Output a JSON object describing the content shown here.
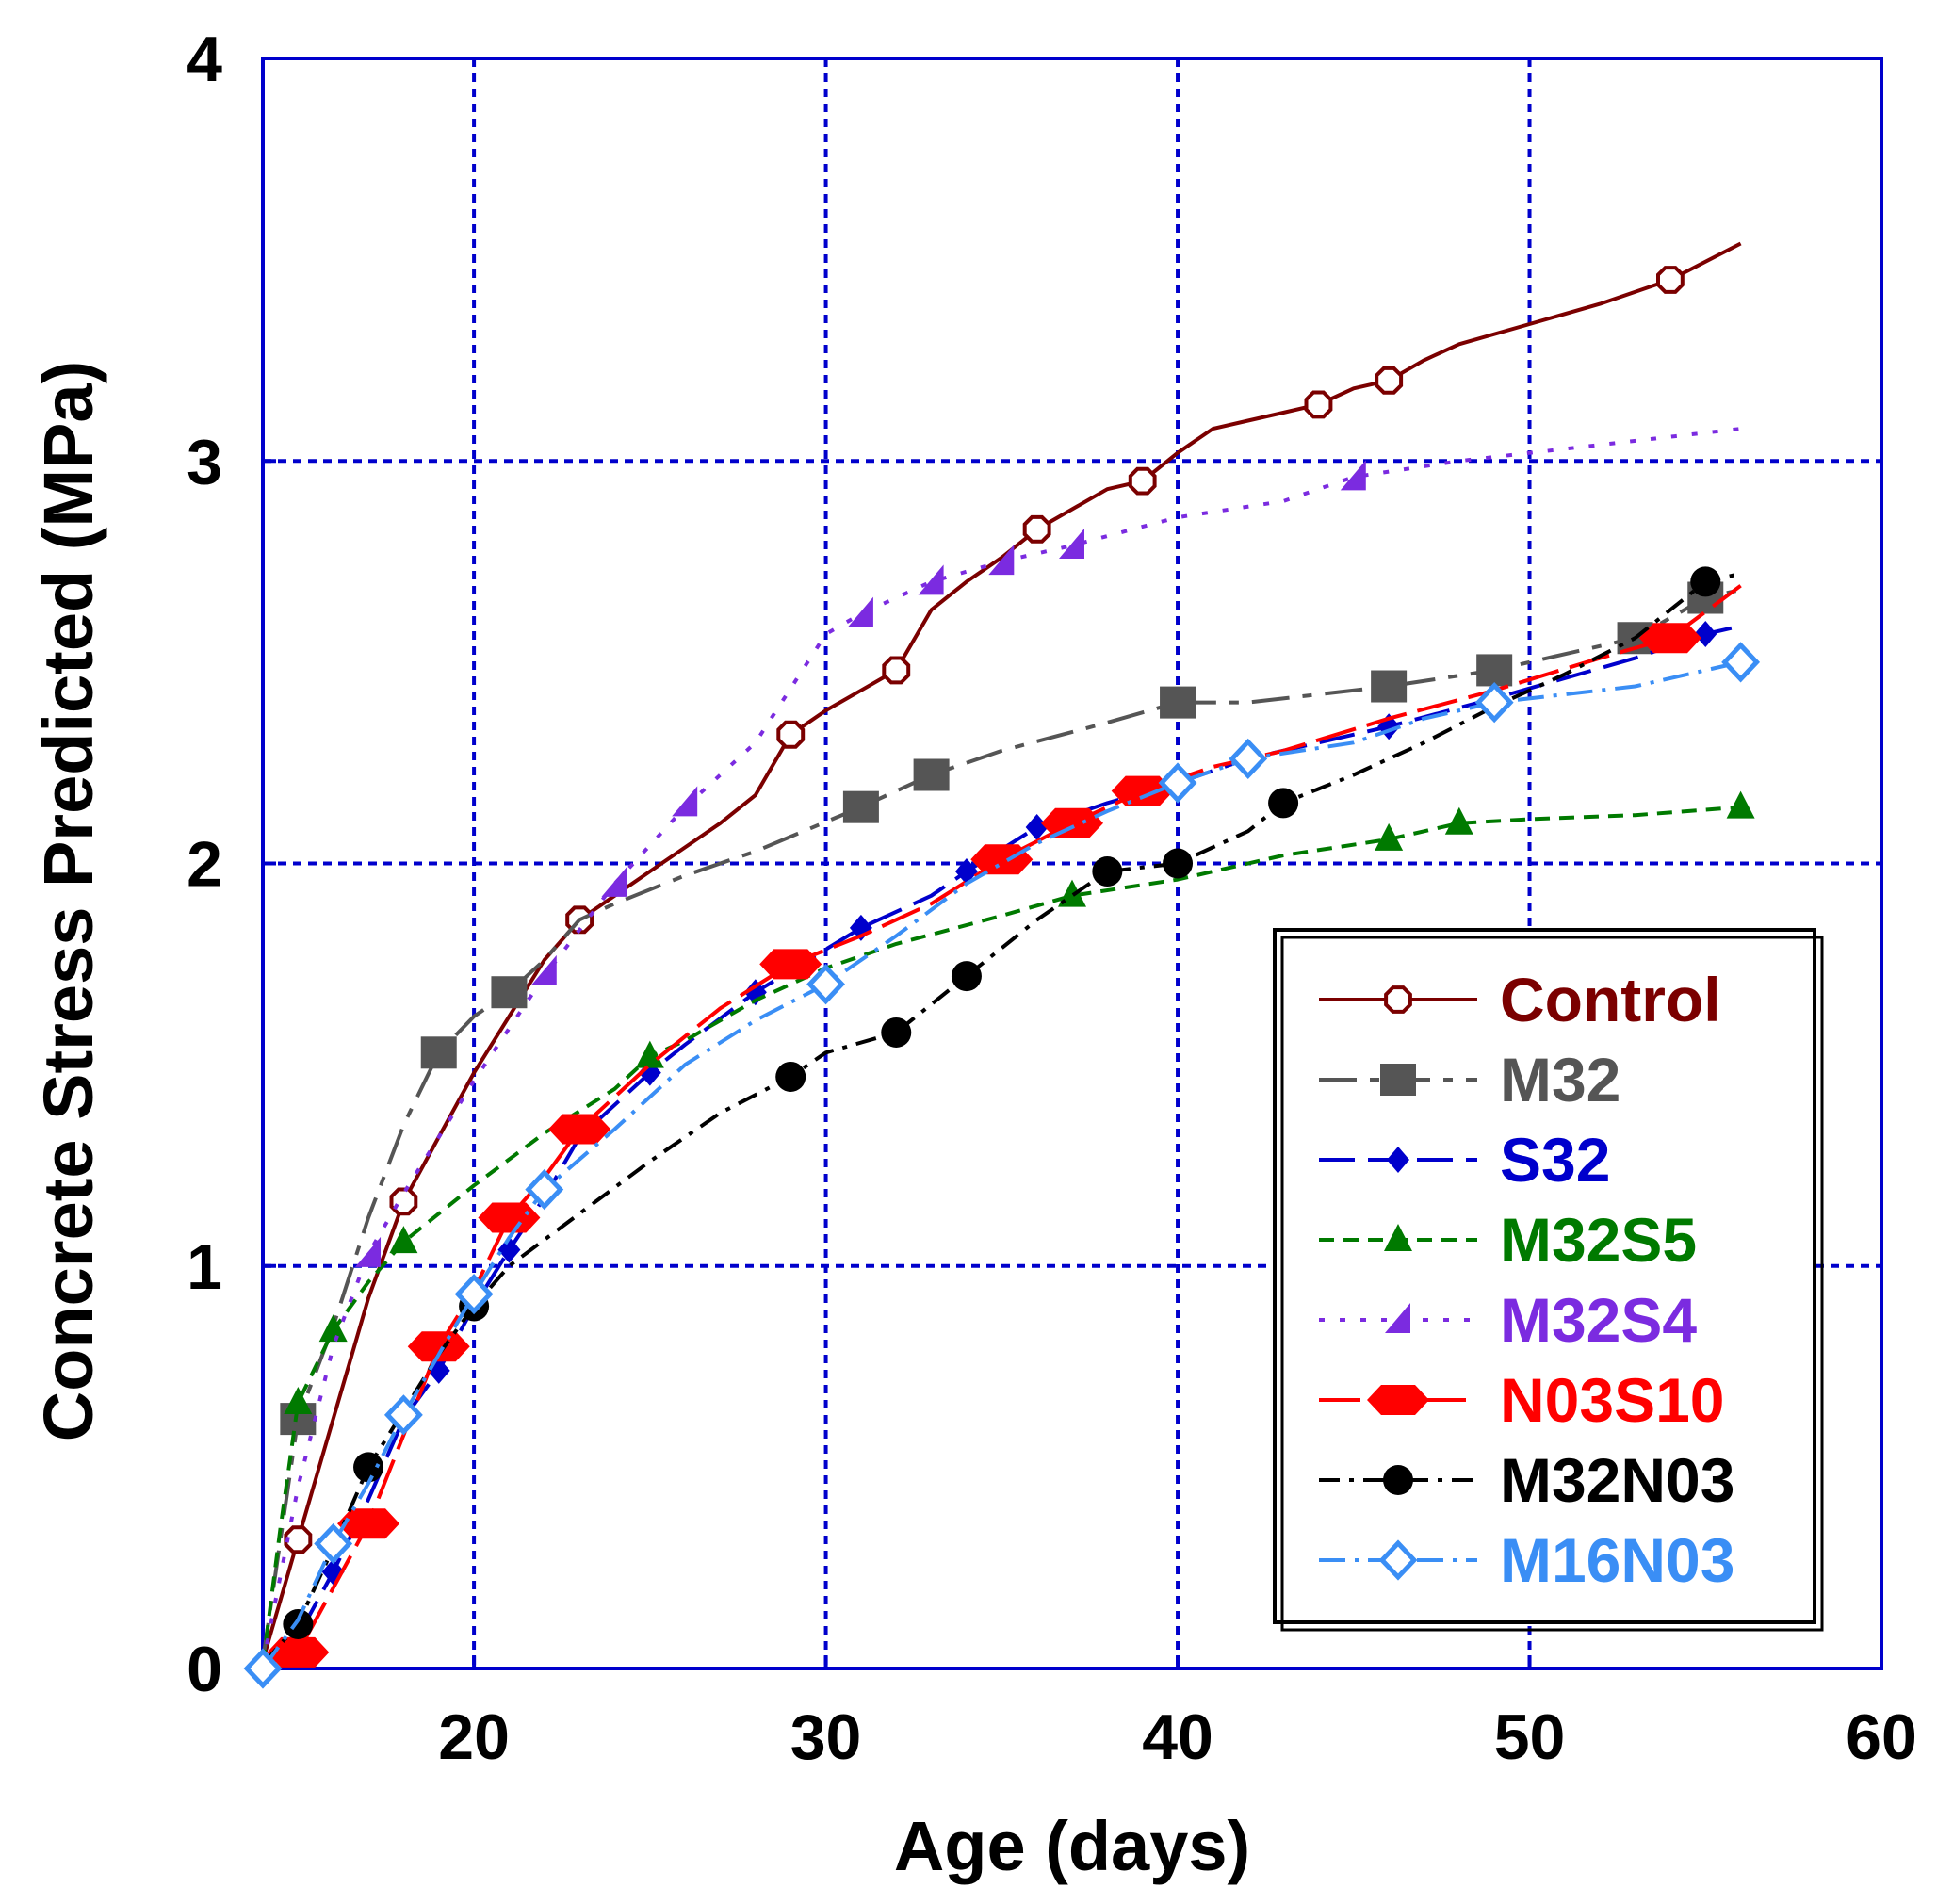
{
  "chart_data": {
    "type": "line",
    "title": "",
    "xlabel": "Age (days)",
    "ylabel": "Concrete Stress Predicted (MPa)",
    "xlim": [
      14,
      60
    ],
    "ylim": [
      0,
      4
    ],
    "xticks": [
      20,
      30,
      40,
      50,
      60
    ],
    "yticks": [
      0,
      1,
      2,
      3,
      4
    ],
    "xtick_labels": [
      "20",
      "30",
      "40",
      "50",
      "60"
    ],
    "ytick_labels": [
      "0",
      "1",
      "2",
      "3",
      "4"
    ],
    "grid": true,
    "legend_position": "bottom-right",
    "series": [
      {
        "name": "Control",
        "color": "#7b0000",
        "dash": "",
        "marker": "open-octagon",
        "line": [
          [
            14,
            0.02
          ],
          [
            15,
            0.32
          ],
          [
            16,
            0.62
          ],
          [
            17,
            0.92
          ],
          [
            18,
            1.16
          ],
          [
            19,
            1.32
          ],
          [
            20,
            1.48
          ],
          [
            21,
            1.62
          ],
          [
            22,
            1.76
          ],
          [
            23,
            1.86
          ],
          [
            24,
            1.92
          ],
          [
            25,
            1.98
          ],
          [
            26,
            2.04
          ],
          [
            27,
            2.1
          ],
          [
            28,
            2.17
          ],
          [
            29,
            2.32
          ],
          [
            30,
            2.38
          ],
          [
            31,
            2.43
          ],
          [
            32,
            2.48
          ],
          [
            33,
            2.63
          ],
          [
            34,
            2.7
          ],
          [
            35,
            2.76
          ],
          [
            36,
            2.83
          ],
          [
            37,
            2.88
          ],
          [
            38,
            2.93
          ],
          [
            39,
            2.95
          ],
          [
            40,
            3.02
          ],
          [
            41,
            3.08
          ],
          [
            42,
            3.1
          ],
          [
            43,
            3.12
          ],
          [
            44,
            3.14
          ],
          [
            45,
            3.18
          ],
          [
            46,
            3.2
          ],
          [
            47,
            3.25
          ],
          [
            48,
            3.29
          ],
          [
            50,
            3.34
          ],
          [
            52,
            3.39
          ],
          [
            54,
            3.45
          ],
          [
            56,
            3.54
          ]
        ],
        "markers": [
          [
            15,
            0.32
          ],
          [
            18,
            1.16
          ],
          [
            23,
            1.86
          ],
          [
            29,
            2.32
          ],
          [
            32,
            2.48
          ],
          [
            36,
            2.83
          ],
          [
            39,
            2.95
          ],
          [
            44,
            3.14
          ],
          [
            46,
            3.2
          ],
          [
            54,
            3.45
          ]
        ]
      },
      {
        "name": "M32",
        "color": "#555555",
        "dash": "40,14,10,14",
        "marker": "square",
        "line": [
          [
            14,
            0.02
          ],
          [
            15,
            0.62
          ],
          [
            16,
            0.85
          ],
          [
            17,
            1.12
          ],
          [
            18,
            1.35
          ],
          [
            19,
            1.53
          ],
          [
            20,
            1.62
          ],
          [
            21,
            1.68
          ],
          [
            22,
            1.76
          ],
          [
            23,
            1.86
          ],
          [
            24,
            1.9
          ],
          [
            26,
            1.97
          ],
          [
            28,
            2.03
          ],
          [
            31,
            2.14
          ],
          [
            33,
            2.22
          ],
          [
            35,
            2.28
          ],
          [
            38,
            2.35
          ],
          [
            40,
            2.4
          ],
          [
            42,
            2.4
          ],
          [
            46,
            2.44
          ],
          [
            49,
            2.48
          ],
          [
            51,
            2.52
          ],
          [
            53,
            2.56
          ],
          [
            55,
            2.66
          ],
          [
            56,
            2.68
          ]
        ],
        "markers": [
          [
            15,
            0.62
          ],
          [
            19,
            1.53
          ],
          [
            21,
            1.68
          ],
          [
            31,
            2.14
          ],
          [
            33,
            2.22
          ],
          [
            40,
            2.4
          ],
          [
            46,
            2.44
          ],
          [
            49,
            2.48
          ],
          [
            53,
            2.56
          ],
          [
            55,
            2.66
          ]
        ]
      },
      {
        "name": "S32",
        "color": "#0000cc",
        "dash": "38,14",
        "marker": "diamond",
        "line": [
          [
            14,
            0.01
          ],
          [
            15,
            0.08
          ],
          [
            16,
            0.24
          ],
          [
            17,
            0.42
          ],
          [
            18,
            0.62
          ],
          [
            19,
            0.74
          ],
          [
            20,
            0.9
          ],
          [
            21,
            1.04
          ],
          [
            22,
            1.17
          ],
          [
            23,
            1.32
          ],
          [
            25,
            1.48
          ],
          [
            26,
            1.55
          ],
          [
            28,
            1.68
          ],
          [
            31,
            1.84
          ],
          [
            33,
            1.92
          ],
          [
            34,
            1.98
          ],
          [
            36,
            2.09
          ],
          [
            38,
            2.15
          ],
          [
            40,
            2.2
          ],
          [
            42,
            2.26
          ],
          [
            46,
            2.34
          ],
          [
            49,
            2.41
          ],
          [
            53,
            2.51
          ],
          [
            55,
            2.57
          ],
          [
            56,
            2.59
          ]
        ],
        "markers": [
          [
            16,
            0.24
          ],
          [
            19,
            0.74
          ],
          [
            21,
            1.04
          ],
          [
            25,
            1.48
          ],
          [
            28,
            1.68
          ],
          [
            31,
            1.84
          ],
          [
            34,
            1.98
          ],
          [
            36,
            2.09
          ],
          [
            46,
            2.34
          ],
          [
            55,
            2.57
          ]
        ]
      },
      {
        "name": "M32S5",
        "color": "#007a00",
        "dash": "16,10",
        "marker": "triangle",
        "line": [
          [
            14,
            0.01
          ],
          [
            14.5,
            0.35
          ],
          [
            15,
            0.66
          ],
          [
            16,
            0.84
          ],
          [
            17,
            0.96
          ],
          [
            18,
            1.06
          ],
          [
            20,
            1.2
          ],
          [
            22,
            1.33
          ],
          [
            24,
            1.44
          ],
          [
            25,
            1.52
          ],
          [
            26,
            1.56
          ],
          [
            28,
            1.66
          ],
          [
            30,
            1.74
          ],
          [
            32,
            1.8
          ],
          [
            35,
            1.87
          ],
          [
            37,
            1.92
          ],
          [
            40,
            1.96
          ],
          [
            43,
            2.02
          ],
          [
            46,
            2.06
          ],
          [
            48,
            2.1
          ],
          [
            50,
            2.11
          ],
          [
            53,
            2.12
          ],
          [
            56,
            2.14
          ]
        ],
        "markers": [
          [
            15,
            0.66
          ],
          [
            16,
            0.84
          ],
          [
            18,
            1.06
          ],
          [
            25,
            1.52
          ],
          [
            37,
            1.92
          ],
          [
            46,
            2.06
          ],
          [
            48,
            2.1
          ],
          [
            56,
            2.14
          ]
        ]
      },
      {
        "name": "M32S4",
        "color": "#7b2be0",
        "dash": "6,16",
        "marker": "half-triangle",
        "line": [
          [
            14,
            0.01
          ],
          [
            15,
            0.45
          ],
          [
            16,
            0.8
          ],
          [
            17,
            1.03
          ],
          [
            18,
            1.18
          ],
          [
            20,
            1.46
          ],
          [
            22,
            1.72
          ],
          [
            24,
            1.95
          ],
          [
            26,
            2.14
          ],
          [
            28,
            2.3
          ],
          [
            30,
            2.57
          ],
          [
            31,
            2.62
          ],
          [
            33,
            2.7
          ],
          [
            35,
            2.75
          ],
          [
            37,
            2.79
          ],
          [
            40,
            2.86
          ],
          [
            43,
            2.9
          ],
          [
            45,
            2.96
          ],
          [
            48,
            3.0
          ],
          [
            52,
            3.04
          ],
          [
            56,
            3.08
          ]
        ],
        "markers": [
          [
            17,
            1.03
          ],
          [
            22,
            1.73
          ],
          [
            24,
            1.95
          ],
          [
            26,
            2.15
          ],
          [
            31,
            2.62
          ],
          [
            33,
            2.7
          ],
          [
            35,
            2.75
          ],
          [
            37,
            2.79
          ],
          [
            45,
            2.96
          ]
        ]
      },
      {
        "name": "N03S10",
        "color": "#ff0000",
        "dash": "44,12",
        "marker": "hexagon",
        "line": [
          [
            14,
            0.01
          ],
          [
            15,
            0.04
          ],
          [
            16,
            0.2
          ],
          [
            17,
            0.36
          ],
          [
            18,
            0.58
          ],
          [
            19,
            0.8
          ],
          [
            20,
            0.94
          ],
          [
            21,
            1.12
          ],
          [
            22,
            1.22
          ],
          [
            23,
            1.34
          ],
          [
            24,
            1.42
          ],
          [
            25,
            1.5
          ],
          [
            27,
            1.64
          ],
          [
            29,
            1.75
          ],
          [
            31,
            1.82
          ],
          [
            33,
            1.9
          ],
          [
            35,
            2.01
          ],
          [
            37,
            2.1
          ],
          [
            39,
            2.18
          ],
          [
            41,
            2.24
          ],
          [
            43,
            2.28
          ],
          [
            46,
            2.36
          ],
          [
            49,
            2.43
          ],
          [
            52,
            2.51
          ],
          [
            54,
            2.56
          ],
          [
            56,
            2.69
          ]
        ],
        "markers": [
          [
            15,
            0.04
          ],
          [
            17,
            0.36
          ],
          [
            19,
            0.8
          ],
          [
            21,
            1.12
          ],
          [
            23,
            1.34
          ],
          [
            29,
            1.75
          ],
          [
            35,
            2.01
          ],
          [
            37,
            2.1
          ],
          [
            39,
            2.18
          ],
          [
            54,
            2.56
          ]
        ]
      },
      {
        "name": "M32N03",
        "color": "#000000",
        "dash": "22,10,5,10",
        "marker": "circle",
        "line": [
          [
            14,
            0.01
          ],
          [
            15,
            0.11
          ],
          [
            16,
            0.3
          ],
          [
            17,
            0.5
          ],
          [
            18,
            0.64
          ],
          [
            19,
            0.78
          ],
          [
            20,
            0.9
          ],
          [
            21,
            1.0
          ],
          [
            23,
            1.13
          ],
          [
            25,
            1.26
          ],
          [
            27,
            1.38
          ],
          [
            29,
            1.47
          ],
          [
            30,
            1.53
          ],
          [
            32,
            1.58
          ],
          [
            34,
            1.72
          ],
          [
            36,
            1.86
          ],
          [
            38,
            1.98
          ],
          [
            40,
            2.0
          ],
          [
            42,
            2.08
          ],
          [
            43,
            2.15
          ],
          [
            45,
            2.22
          ],
          [
            47,
            2.3
          ],
          [
            49,
            2.39
          ],
          [
            51,
            2.47
          ],
          [
            53,
            2.56
          ],
          [
            55,
            2.7
          ],
          [
            56,
            2.72
          ]
        ],
        "markers": [
          [
            15,
            0.11
          ],
          [
            17,
            0.5
          ],
          [
            20,
            0.9
          ],
          [
            29,
            1.47
          ],
          [
            32,
            1.58
          ],
          [
            34,
            1.72
          ],
          [
            38,
            1.98
          ],
          [
            40,
            2.0
          ],
          [
            43,
            2.15
          ],
          [
            55,
            2.7
          ]
        ]
      },
      {
        "name": "M16N03",
        "color": "#3a8ef5",
        "dash": "28,10,4,10",
        "marker": "open-diamond",
        "line": [
          [
            14,
            0.0
          ],
          [
            15,
            0.12
          ],
          [
            16,
            0.31
          ],
          [
            17,
            0.46
          ],
          [
            18,
            0.63
          ],
          [
            19,
            0.78
          ],
          [
            20,
            0.93
          ],
          [
            21,
            1.07
          ],
          [
            22,
            1.19
          ],
          [
            24,
            1.34
          ],
          [
            26,
            1.5
          ],
          [
            28,
            1.61
          ],
          [
            30,
            1.7
          ],
          [
            32,
            1.82
          ],
          [
            34,
            1.95
          ],
          [
            36,
            2.05
          ],
          [
            38,
            2.13
          ],
          [
            40,
            2.2
          ],
          [
            42,
            2.26
          ],
          [
            45,
            2.3
          ],
          [
            47,
            2.36
          ],
          [
            49,
            2.4
          ],
          [
            53,
            2.44
          ],
          [
            56,
            2.5
          ]
        ],
        "markers": [
          [
            14,
            0.0
          ],
          [
            16,
            0.31
          ],
          [
            18,
            0.63
          ],
          [
            20,
            0.93
          ],
          [
            22,
            1.19
          ],
          [
            30,
            1.7
          ],
          [
            40,
            2.2
          ],
          [
            42,
            2.26
          ],
          [
            49,
            2.4
          ],
          [
            56,
            2.5
          ]
        ]
      }
    ]
  }
}
